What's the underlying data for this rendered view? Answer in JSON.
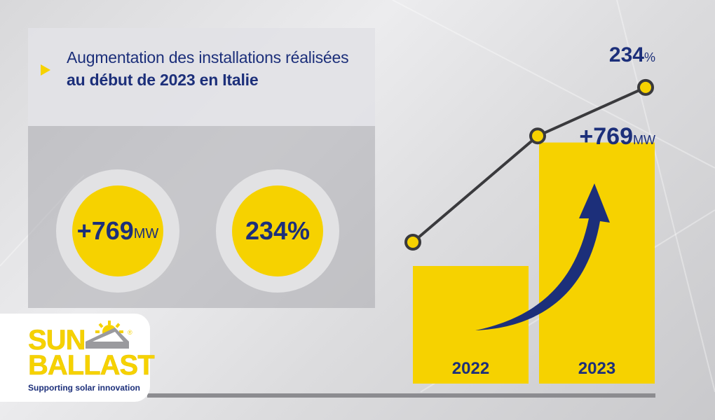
{
  "headline": {
    "line1": "Augmentation des installations réalisées",
    "line2": "au début de 2023 en Italie"
  },
  "stats": [
    {
      "value": "+769",
      "unit": "MW"
    },
    {
      "value": "234%",
      "unit": ""
    }
  ],
  "brand": {
    "name_line1": "SUN",
    "name_line2": "BALLAST",
    "tagline": "Supporting solar innovation",
    "registered": "®"
  },
  "colors": {
    "accent_yellow": "#f6d200",
    "navy": "#1c2f7a",
    "line_gray": "#3a3a3d"
  },
  "chart_data": {
    "type": "bar",
    "categories": [
      "2022",
      "2023"
    ],
    "series": [
      {
        "values": [
          1,
          2.05
        ]
      }
    ],
    "line_series": [
      {
        "values": [
          1,
          2.34
        ]
      }
    ],
    "annotations": {
      "bar_label": "+769",
      "bar_label_unit": "MW",
      "line_label": "234",
      "line_label_unit": "%"
    },
    "title": "",
    "xlabel": "",
    "ylabel": ""
  }
}
